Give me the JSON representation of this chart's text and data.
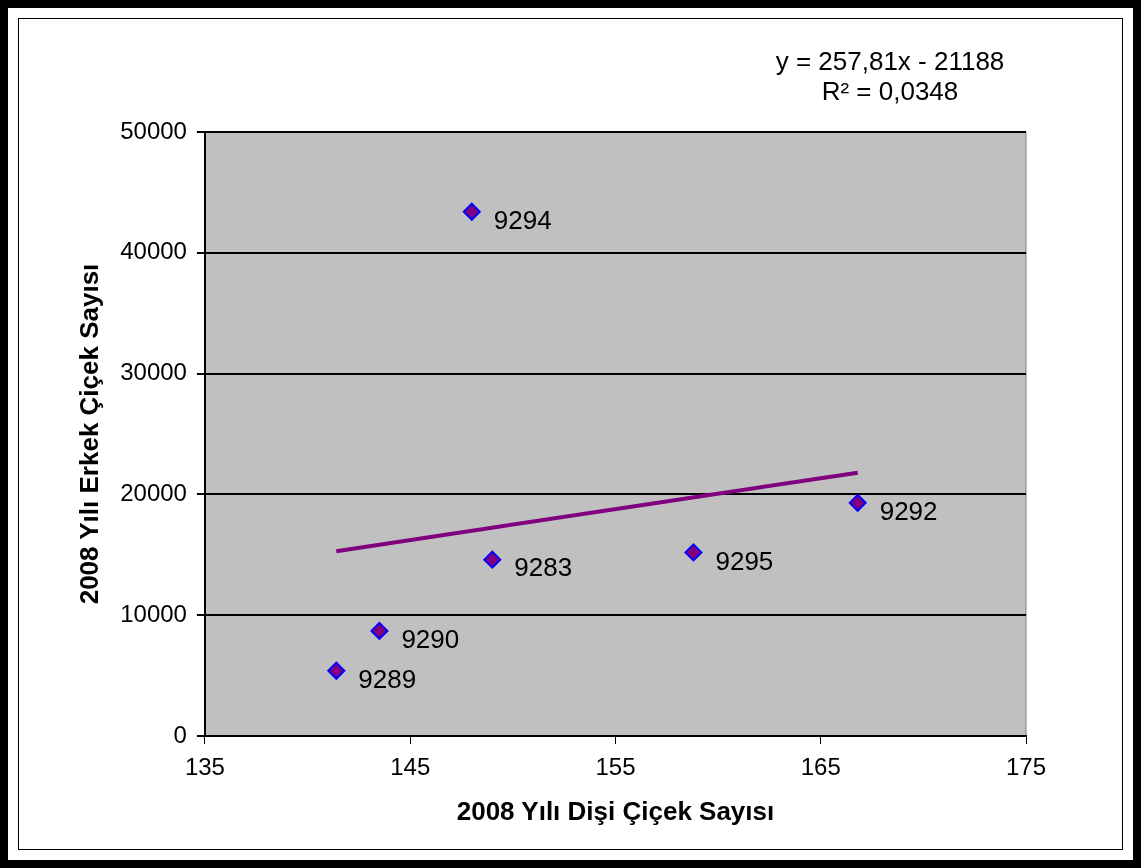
{
  "chart_data": {
    "type": "scatter",
    "xlabel": "2008 Yılı Dişi Çiçek Sayısı",
    "ylabel": "2008 Yılı Erkek Çiçek Sayısı",
    "x": [
      148.0,
      149.0,
      158.8,
      166.8,
      143.5,
      141.4
    ],
    "series": [
      {
        "color": "#800080",
        "marker": "diamond",
        "values": [
          43400,
          14600,
          15200,
          19300,
          8700,
          5400
        ]
      },
      {
        "type": "line",
        "x": [
          141.4,
          166.8
        ],
        "color": "#800080",
        "marker": "none",
        "values": [
          15300,
          21800
        ]
      }
    ],
    "xlim": [
      135,
      175
    ],
    "xticks": [
      135,
      145,
      155,
      165,
      175
    ],
    "ylim": [
      0,
      50000
    ],
    "yticks": [
      0,
      10000,
      20000,
      30000,
      40000,
      50000
    ],
    "grid": "y",
    "legend": false,
    "annotations": [
      "y = 257,81x - 21188",
      "R² = 0,0348",
      {
        "text": "9294",
        "x": 148.0,
        "y": 43400
      },
      {
        "text": "9283",
        "x": 149.0,
        "y": 14650
      },
      {
        "text": "9295",
        "x": 158.8,
        "y": 15150
      },
      {
        "text": "9292",
        "x": 166.8,
        "y": 19290
      },
      {
        "text": "9290",
        "x": 143.5,
        "y": 8690
      },
      {
        "text": "9289",
        "x": 141.4,
        "y": 5380
      }
    ]
  }
}
